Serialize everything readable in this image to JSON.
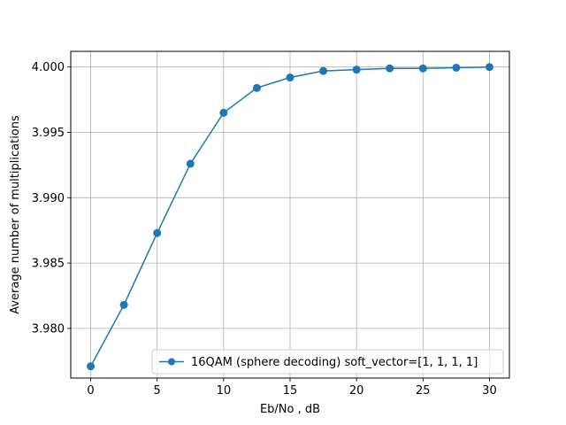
{
  "chart_data": {
    "type": "line",
    "title": "",
    "xlabel": "Eb/No , dB",
    "ylabel": "Average number of multiplications",
    "xlim": [
      -1.5,
      31.5
    ],
    "ylim": [
      3.9762,
      4.0012
    ],
    "xticks": [
      0,
      5,
      10,
      15,
      20,
      25,
      30
    ],
    "yticks": [
      3.98,
      3.985,
      3.99,
      3.995,
      4.0
    ],
    "xtick_labels": [
      "0",
      "5",
      "10",
      "15",
      "20",
      "25",
      "30"
    ],
    "ytick_labels": [
      "3.980",
      "3.985",
      "3.990",
      "3.995",
      "4.000"
    ],
    "grid": true,
    "legend_position": "lower-right",
    "series": [
      {
        "name": "16QAM (sphere decoding) soft_vector=[1, 1, 1, 1]",
        "color": "#1f77b4",
        "marker": "circle",
        "x": [
          0,
          2.5,
          5,
          7.5,
          10,
          12.5,
          15,
          17.5,
          20,
          22.5,
          25,
          27.5,
          30
        ],
        "y": [
          3.9771,
          3.9818,
          3.9873,
          3.9926,
          3.9965,
          3.9984,
          3.9992,
          3.9997,
          3.9998,
          3.9999,
          3.9999,
          3.99995,
          4.0
        ]
      }
    ]
  }
}
